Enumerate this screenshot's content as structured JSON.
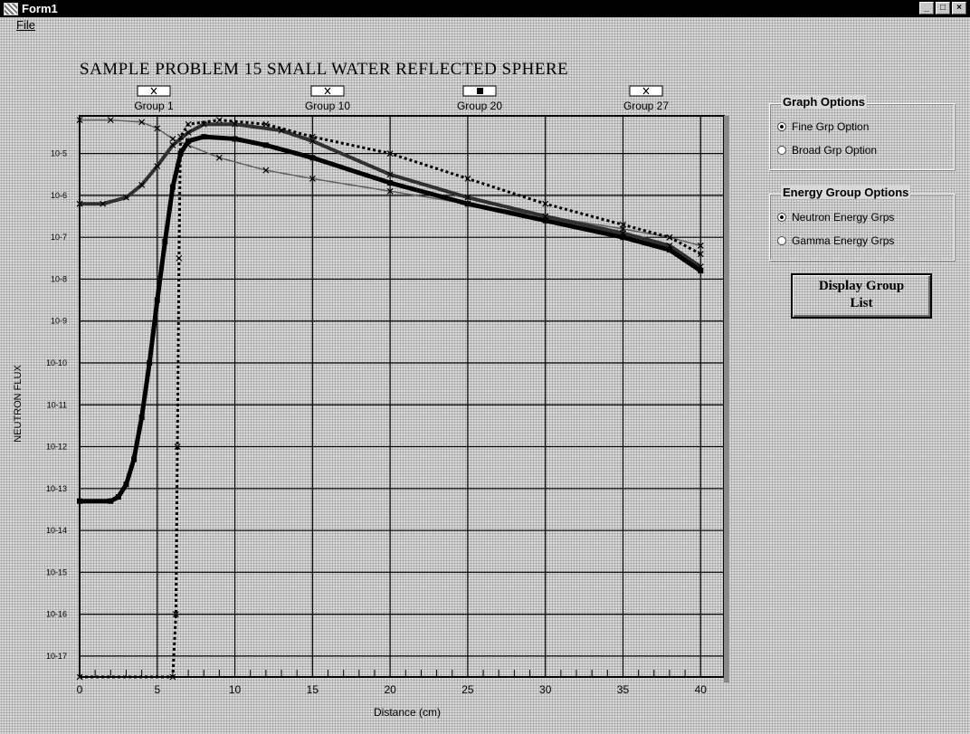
{
  "window": {
    "title": "Form1",
    "controls": [
      "minimize",
      "maximize",
      "close"
    ]
  },
  "menu": {
    "file_label": "File"
  },
  "chart_data": {
    "type": "line",
    "title": "SAMPLE PROBLEM 15  SMALL WATER REFLECTED SPHERE",
    "xlabel": "Distance (cm)",
    "ylabel": "NEUTRON FLUX",
    "x_ticks": [
      "0",
      "5",
      "10",
      "15",
      "20",
      "25",
      "30",
      "35",
      "40"
    ],
    "y_ticks": [
      "10-17",
      "10-16",
      "10-15",
      "10-14",
      "10-13",
      "10-12",
      "10-11",
      "10-10",
      "10-9",
      "10-8",
      "10-7",
      "10-6",
      "10-5"
    ],
    "xlim": [
      0,
      41.5
    ],
    "ylim_log10": [
      -17.5,
      -4.1
    ],
    "grid": true,
    "legend_position": "top",
    "series": [
      {
        "name": "Group 1",
        "marker": "x",
        "color": "#606060",
        "x": [
          0,
          2,
          4,
          5,
          6,
          7,
          9,
          12,
          15,
          20,
          25,
          30,
          35,
          38,
          40
        ],
        "y": [
          -4.2,
          -4.2,
          -4.25,
          -4.4,
          -4.65,
          -4.8,
          -5.1,
          -5.4,
          -5.6,
          -5.9,
          -6.2,
          -6.5,
          -6.8,
          -7.0,
          -7.2
        ]
      },
      {
        "name": "Group 10",
        "marker": "x",
        "color": "#303030",
        "x": [
          0,
          1.5,
          3,
          4,
          5,
          6,
          7,
          8,
          10,
          13,
          15,
          20,
          25,
          30,
          35,
          38,
          40
        ],
        "y": [
          -6.2,
          -6.2,
          -6.05,
          -5.75,
          -5.3,
          -4.8,
          -4.5,
          -4.3,
          -4.3,
          -4.45,
          -4.7,
          -5.5,
          -6.05,
          -6.5,
          -6.9,
          -7.2,
          -7.7
        ]
      },
      {
        "name": "Group 20",
        "marker": "square",
        "color": "#000000",
        "x": [
          0,
          2,
          2.5,
          3,
          3.5,
          4,
          4.5,
          5,
          5.5,
          6,
          6.5,
          7,
          8,
          10,
          12,
          15,
          20,
          25,
          30,
          35,
          38,
          40
        ],
        "y": [
          -13.3,
          -13.3,
          -13.2,
          -12.9,
          -12.3,
          -11.3,
          -10.0,
          -8.5,
          -7.1,
          -5.8,
          -5.0,
          -4.7,
          -4.6,
          -4.65,
          -4.8,
          -5.1,
          -5.7,
          -6.2,
          -6.6,
          -7.0,
          -7.3,
          -7.8
        ]
      },
      {
        "name": "Group 27",
        "marker": "y",
        "color": "#000000",
        "x": [
          0,
          6,
          6.2,
          6.3,
          6.4,
          6.5,
          7,
          9,
          12,
          15,
          20,
          25,
          30,
          35,
          38,
          40
        ],
        "y": [
          -17.5,
          -17.5,
          -16.0,
          -12.0,
          -7.5,
          -4.6,
          -4.3,
          -4.2,
          -4.3,
          -4.6,
          -5.0,
          -5.6,
          -6.2,
          -6.7,
          -7.0,
          -7.4
        ]
      }
    ]
  },
  "graph_options": {
    "title": "Graph Options",
    "fine_label": "Fine Grp Option",
    "broad_label": "Broad Grp Option",
    "selected": "fine"
  },
  "energy_options": {
    "title": "Energy Group Options",
    "neutron_label": "Neutron Energy Grps",
    "gamma_label": "Gamma Energy Grps",
    "selected": "neutron"
  },
  "display_button": {
    "line1": "Display Group",
    "line2": "List"
  }
}
